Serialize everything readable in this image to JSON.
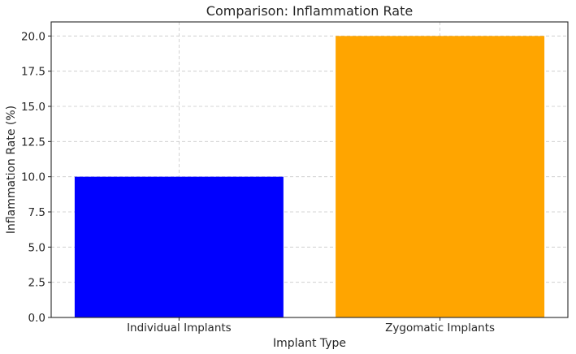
{
  "chart_data": {
    "type": "bar",
    "title": "Comparison: Inflammation Rate",
    "xlabel": "Implant Type",
    "ylabel": "Inflammation Rate (%)",
    "categories": [
      "Individual Implants",
      "Zygomatic Implants"
    ],
    "values": [
      10.0,
      20.0
    ],
    "bar_colors": [
      "#0000ff",
      "#ffa500"
    ],
    "ylim": [
      0,
      21
    ],
    "yticks": [
      0.0,
      2.5,
      5.0,
      7.5,
      10.0,
      12.5,
      15.0,
      17.5,
      20.0
    ],
    "ytick_labels": [
      "0.0",
      "2.5",
      "5.0",
      "7.5",
      "10.0",
      "12.5",
      "15.0",
      "17.5",
      "20.0"
    ],
    "grid": true
  }
}
